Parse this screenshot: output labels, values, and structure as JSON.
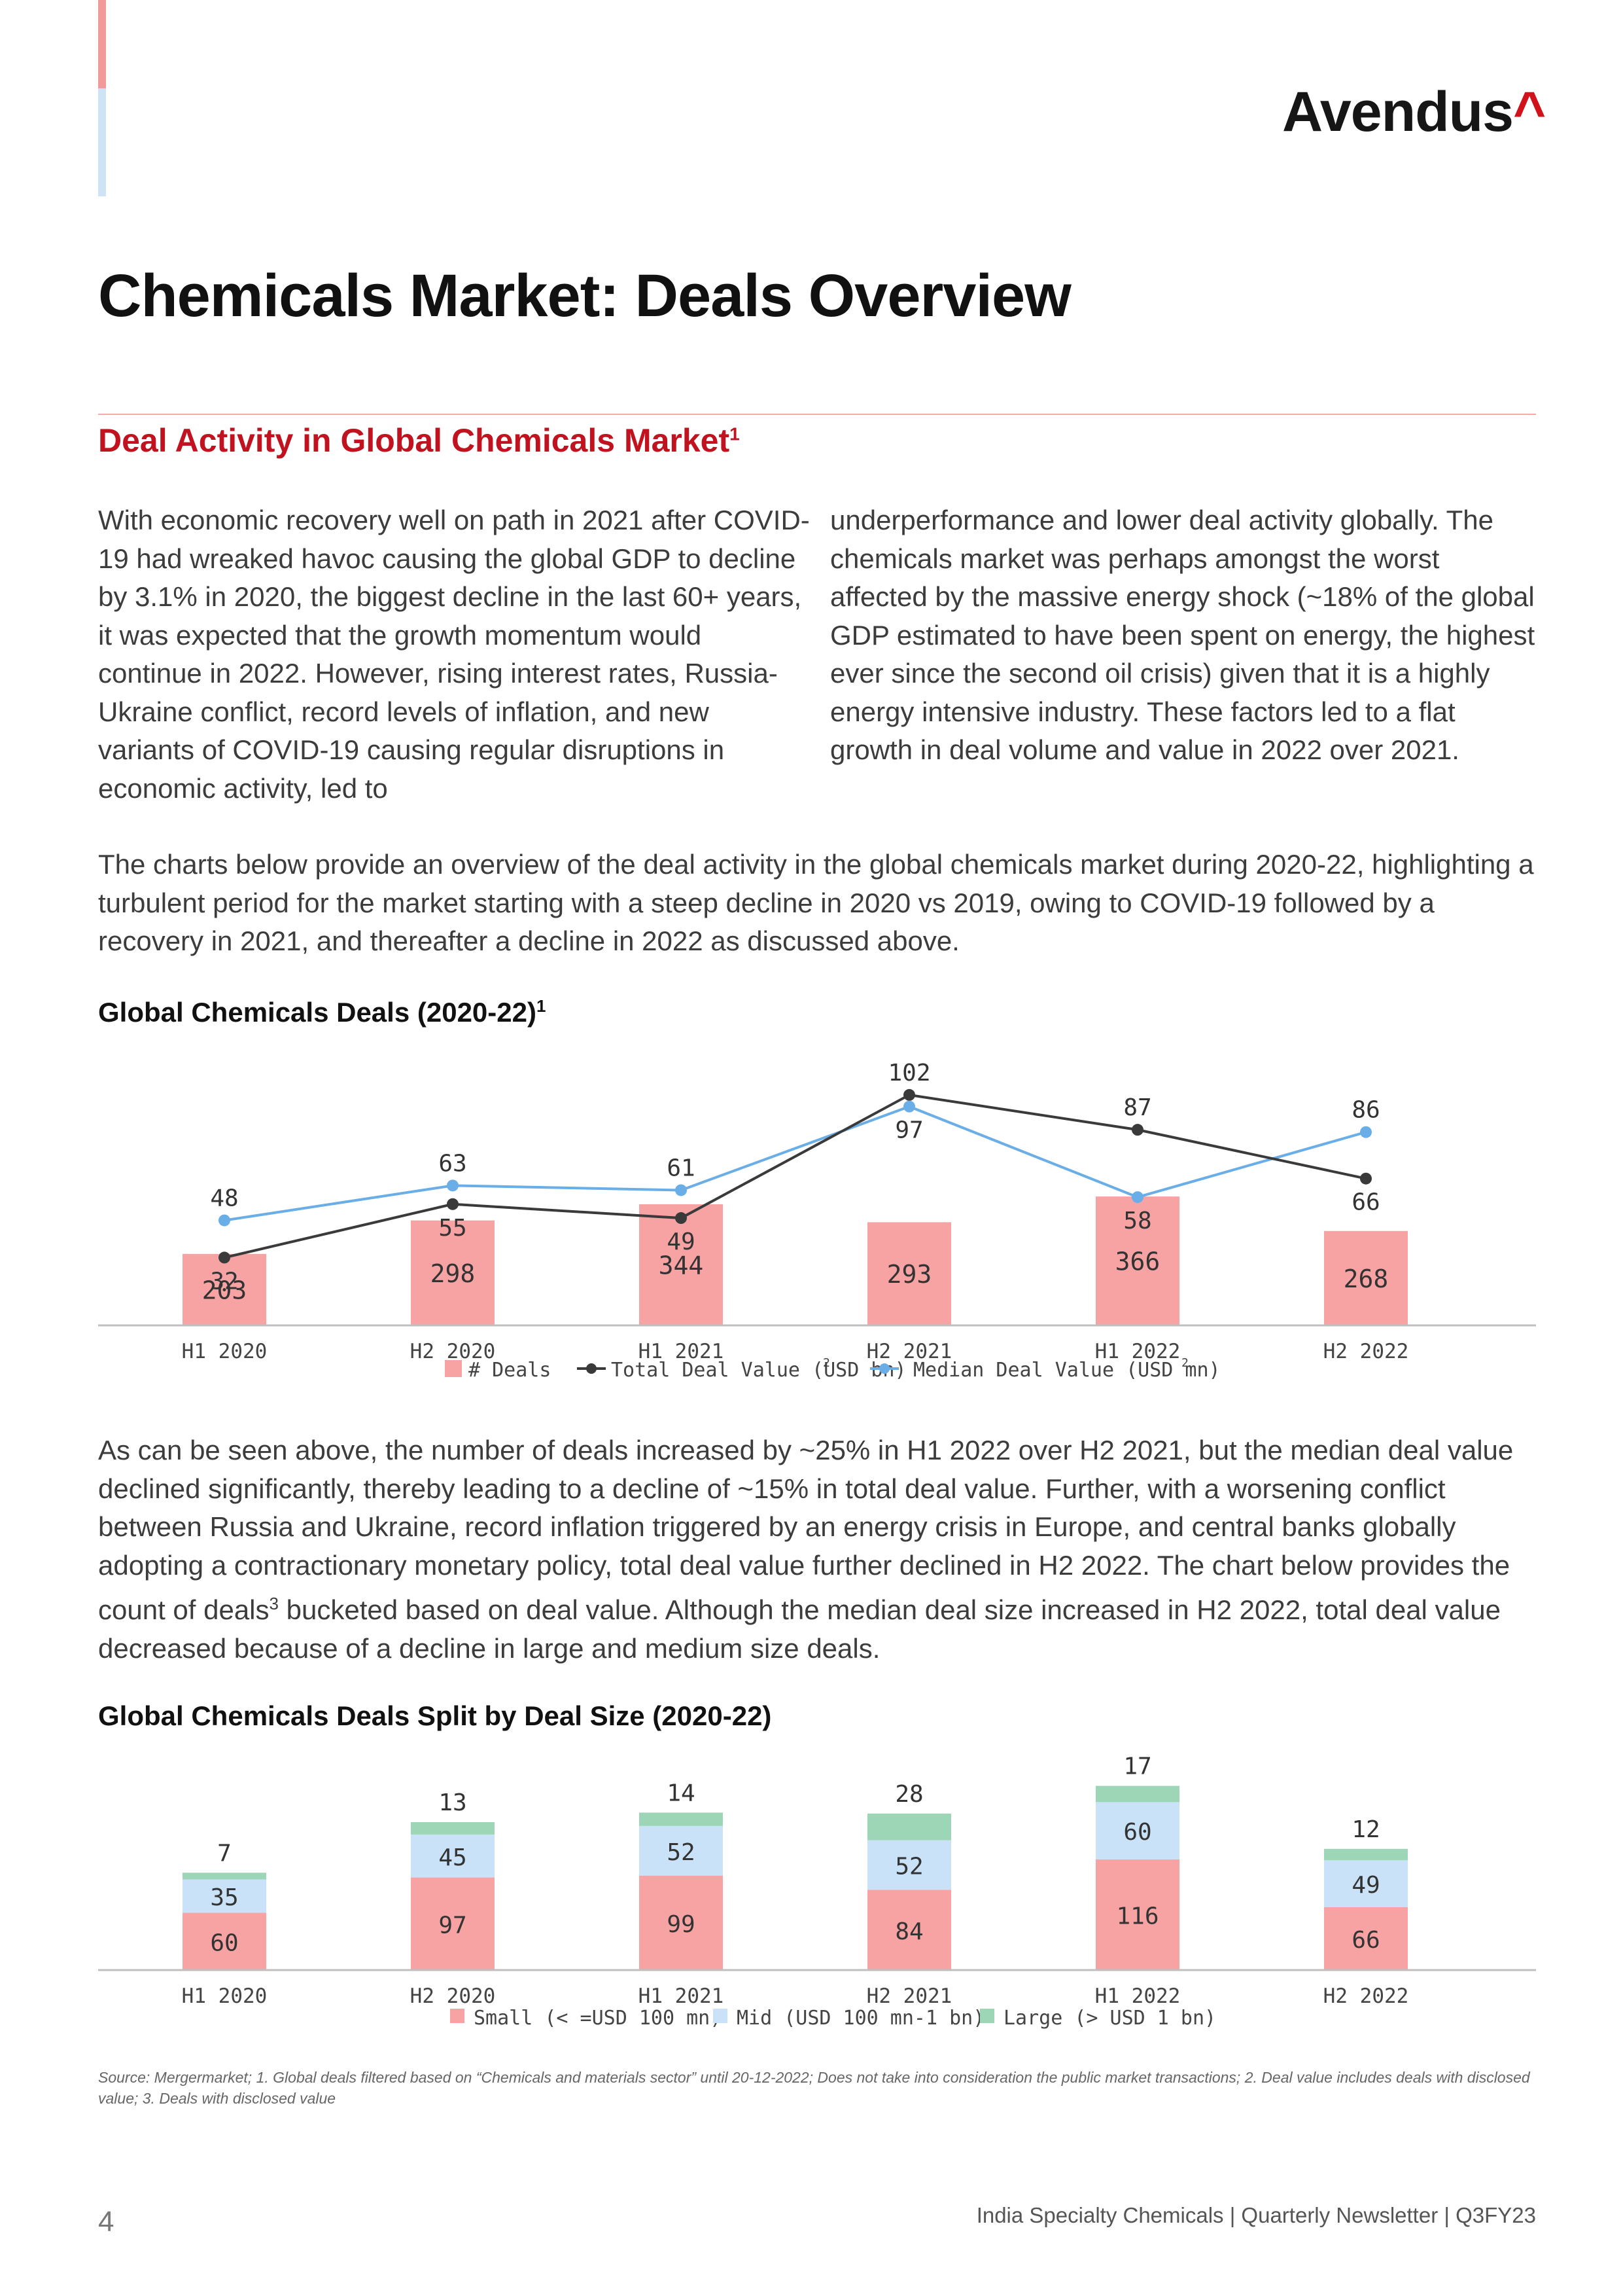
{
  "logo": {
    "text": "Avendus",
    "caret": "^"
  },
  "title": "Chemicals Market: Deals Overview",
  "section_title": "Deal Activity in Global Chemicals Market",
  "section_sup": "1",
  "col1_text": "With economic recovery well on path in 2021 after COVID-19 had wreaked havoc causing the global GDP to decline by 3.1% in 2020, the biggest decline in the last 60+ years, it was expected that the growth momentum would continue in 2022. However, rising interest rates, Russia-Ukraine conflict, record levels of inflation, and new variants of COVID-19 causing regular disruptions in economic activity, led to",
  "col2_text": "underperformance and lower deal activity globally. The chemicals market was perhaps amongst the worst affected by the massive energy shock (~18% of the global GDP estimated to have been spent on energy, the highest ever since the second oil crisis) given that it is a highly energy intensive industry. These factors led to a flat growth in deal volume and value in 2022 over 2021.",
  "para2": "The charts below provide an overview of the deal activity in the global chemicals market during 2020-22, highlighting a turbulent period for the market starting with a steep decline in 2020 vs 2019, owing to COVID-19 followed by a recovery in 2021, and thereafter a decline in 2022 as discussed above.",
  "para3_a": "As can be seen above, the number of deals increased by ~25% in H1 2022 over H2 2021, but the median deal value declined significantly, thereby leading to a decline of ~15% in total deal value. Further, with a worsening conflict between Russia and Ukraine, record inflation triggered by an energy crisis in Europe, and central banks globally adopting a contractionary monetary policy, total deal value further declined in H2 2022. The chart below provides the count of deals",
  "para3_sup": "3",
  "para3_b": " bucketed based on deal value. Although the median deal size increased in H2 2022, total deal value decreased because of a decline in large and medium size deals.",
  "chart1_title": "Global Chemicals Deals (2020-22)",
  "chart1_sup": "1",
  "chart2_title": "Global Chemicals Deals Split by Deal Size (2020-22)",
  "colors": {
    "deals": "#f7a3a3",
    "total_line": "#3a3a3a",
    "median_line": "#6aaee8",
    "small": "#f7a3a3",
    "mid": "#c9e2f7",
    "large": "#9dd6b6",
    "axis": "#bfbfbf"
  },
  "chart_data": [
    {
      "type": "bar",
      "title": "Global Chemicals Deals (2020-22)",
      "categories": [
        "H1 2020",
        "H2 2020",
        "H1 2021",
        "H2 2021",
        "H1 2022",
        "H2 2022"
      ],
      "series": [
        {
          "name": "# Deals",
          "kind": "bar",
          "values": [
            203,
            298,
            344,
            293,
            366,
            268
          ]
        },
        {
          "name": "Total Deal Value (USD bn)",
          "sup": "2",
          "kind": "line",
          "values": [
            32,
            55,
            49,
            102,
            87,
            66
          ]
        },
        {
          "name": "Median Deal Value (USD mn)",
          "sup": "2",
          "kind": "line",
          "values": [
            48,
            63,
            61,
            97,
            58,
            86
          ]
        }
      ],
      "legend": "bottom"
    },
    {
      "type": "bar",
      "stacked": true,
      "title": "Global Chemicals Deals Split by Deal Size (2020-22)",
      "categories": [
        "H1 2020",
        "H2 2020",
        "H1 2021",
        "H2 2021",
        "H1 2022",
        "H2 2022"
      ],
      "series": [
        {
          "name": "Small (< =USD 100 mn)",
          "values": [
            60,
            97,
            99,
            84,
            116,
            66
          ]
        },
        {
          "name": "Mid (USD 100 mn-1 bn)",
          "values": [
            35,
            45,
            52,
            52,
            60,
            49
          ]
        },
        {
          "name": "Large (> USD 1 bn)",
          "values": [
            7,
            13,
            14,
            28,
            17,
            12
          ]
        }
      ],
      "legend": "bottom"
    }
  ],
  "source": "Source: Mergermarket; 1. Global deals filtered based on “Chemicals and materials sector” until 20-12-2022; Does not take into consideration the public market transactions; 2. Deal value includes deals with disclosed value; 3. Deals with disclosed value",
  "page_number": "4",
  "footer": "India Specialty Chemicals | Quarterly Newsletter | Q3FY23"
}
